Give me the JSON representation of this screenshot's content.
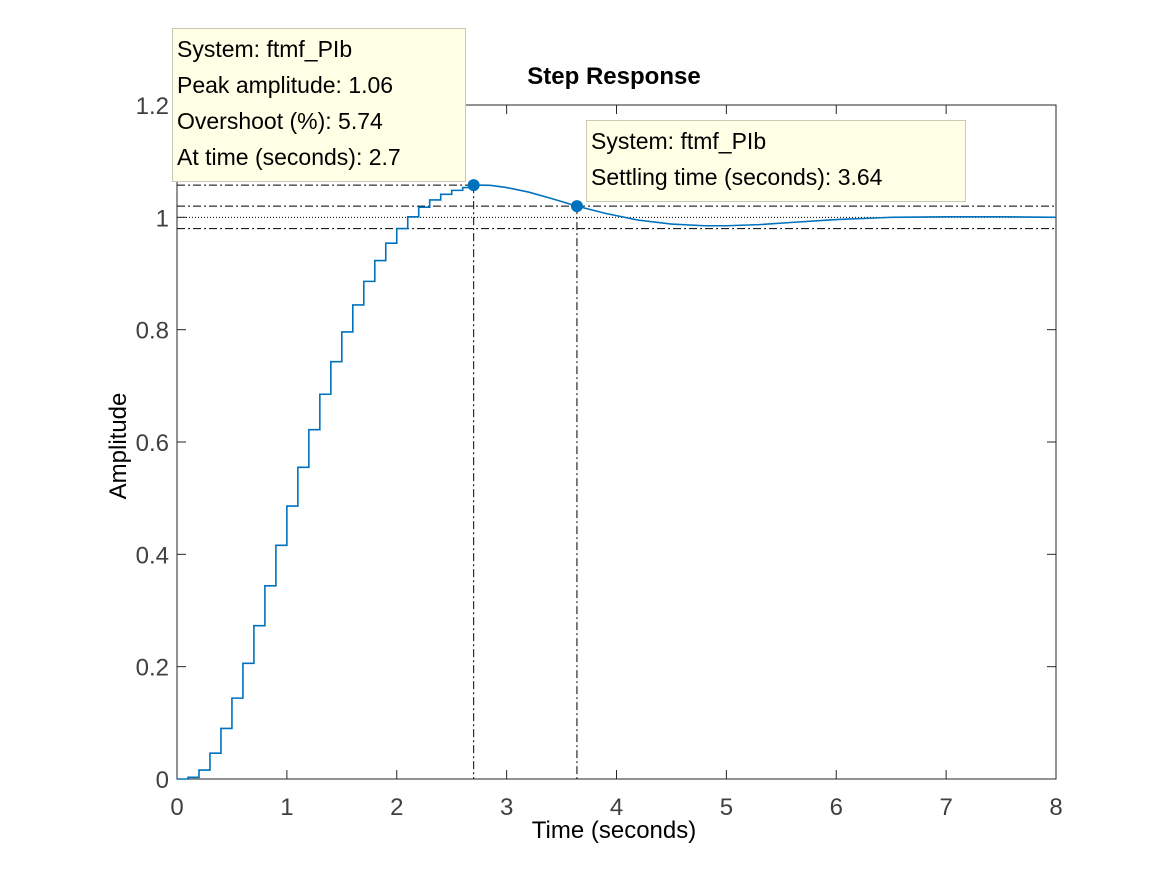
{
  "chart_data": {
    "type": "line",
    "title": "Step Response",
    "xlabel": "Time (seconds)",
    "ylabel": "Amplitude",
    "xlim": [
      0,
      8
    ],
    "ylim": [
      0,
      1.2
    ],
    "xticks": [
      "0",
      "1",
      "2",
      "3",
      "4",
      "5",
      "6",
      "7",
      "8"
    ],
    "yticks": [
      "0",
      "0.2",
      "0.4",
      "0.6",
      "0.8",
      "1",
      "1.2"
    ],
    "grid": false,
    "line_color": "#0072bd",
    "marker_color": "#0072bd",
    "series": [
      {
        "step": 0.1,
        "stairs": [
          [
            0,
            0
          ],
          [
            0.1,
            0.003
          ],
          [
            0.2,
            0.016
          ],
          [
            0.3,
            0.046
          ],
          [
            0.4,
            0.09
          ],
          [
            0.5,
            0.144
          ],
          [
            0.6,
            0.206
          ],
          [
            0.7,
            0.273
          ],
          [
            0.8,
            0.344
          ],
          [
            0.9,
            0.416
          ],
          [
            1.0,
            0.486
          ],
          [
            1.1,
            0.555
          ],
          [
            1.2,
            0.622
          ],
          [
            1.3,
            0.685
          ],
          [
            1.4,
            0.743
          ],
          [
            1.5,
            0.796
          ],
          [
            1.6,
            0.844
          ],
          [
            1.7,
            0.886
          ],
          [
            1.8,
            0.923
          ],
          [
            1.9,
            0.954
          ],
          [
            2.0,
            0.98
          ],
          [
            2.1,
            1.001
          ],
          [
            2.2,
            1.018
          ],
          [
            2.3,
            1.031
          ],
          [
            2.4,
            1.041
          ],
          [
            2.5,
            1.048
          ],
          [
            2.6,
            1.053
          ],
          [
            2.7,
            1.0574
          ]
        ],
        "continuous": [
          [
            2.7,
            1.0574
          ],
          [
            2.85,
            1.057
          ],
          [
            3.0,
            1.053
          ],
          [
            3.2,
            1.045
          ],
          [
            3.4,
            1.034
          ],
          [
            3.64,
            1.02
          ],
          [
            3.9,
            1.007
          ],
          [
            4.2,
            0.995
          ],
          [
            4.5,
            0.988
          ],
          [
            4.8,
            0.985
          ],
          [
            5.0,
            0.985
          ],
          [
            5.3,
            0.987
          ],
          [
            5.6,
            0.991
          ],
          [
            6.0,
            0.996
          ],
          [
            6.5,
            1.0
          ],
          [
            7.0,
            1.001
          ],
          [
            7.5,
            1.001
          ],
          [
            8.0,
            1.0
          ]
        ]
      }
    ],
    "reference_lines": {
      "final_value": 1.0,
      "settling_band": [
        0.98,
        1.02
      ],
      "peak_value": 1.0574
    },
    "annotations": [
      {
        "x": 2.7,
        "y": 1.0574,
        "lines": [
          "System: ftmf_PIb",
          "Peak amplitude: 1.06",
          "Overshoot (%): 5.74",
          "At time (seconds): 2.7"
        ]
      },
      {
        "x": 3.64,
        "y": 1.02,
        "lines": [
          "System: ftmf_PIb",
          "Settling time (seconds): 3.64"
        ]
      }
    ]
  }
}
